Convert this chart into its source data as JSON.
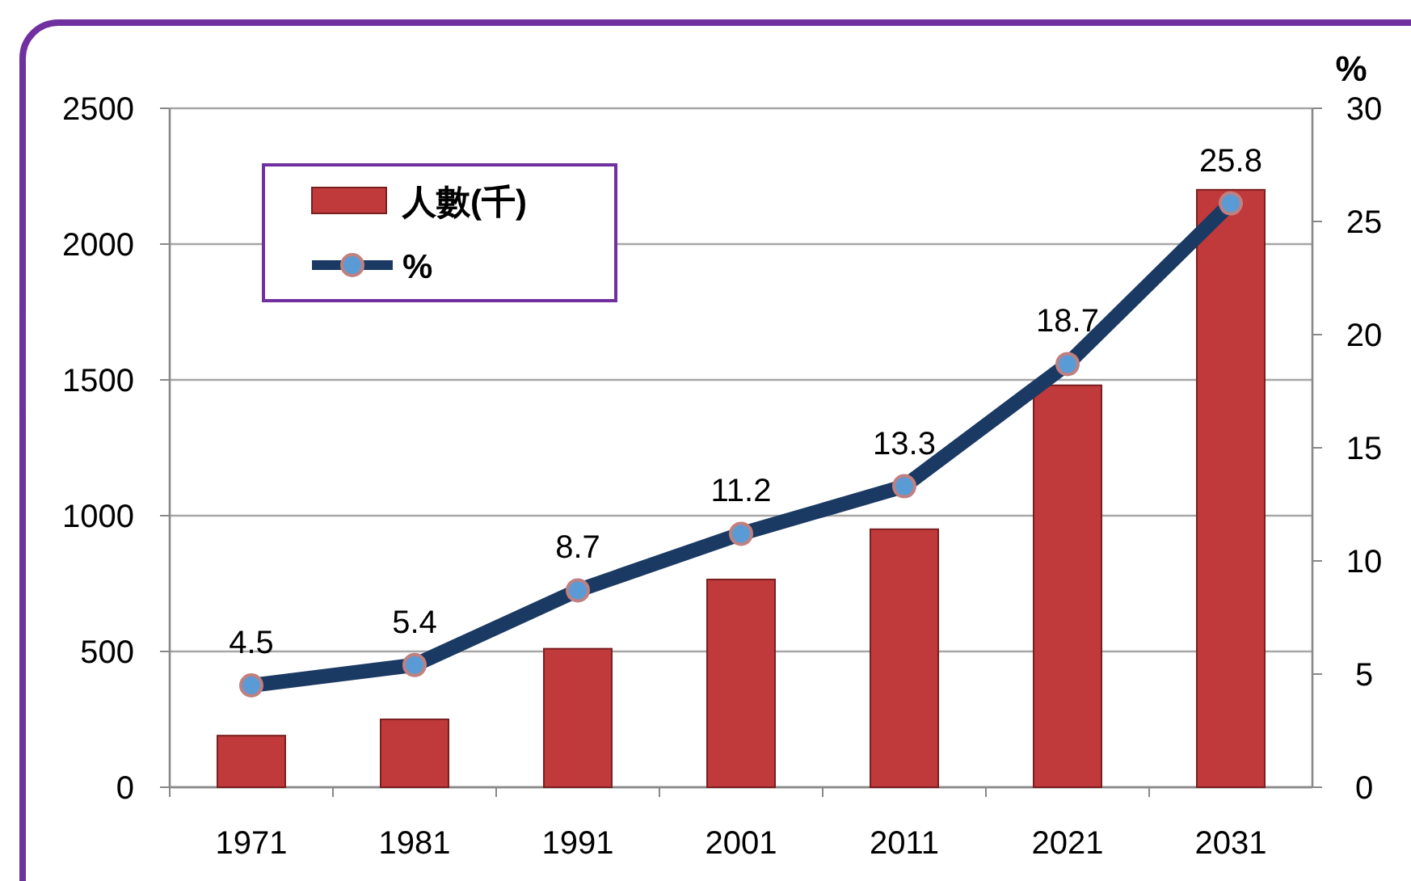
{
  "chart_data": {
    "type": "bar",
    "categories": [
      "1971",
      "1981",
      "1991",
      "2001",
      "2011",
      "2021",
      "2031"
    ],
    "y2label": "%",
    "series": [
      {
        "name": "人數(千)",
        "color": "#c0393b",
        "values": [
          190,
          250,
          510,
          765,
          950,
          1480,
          2200
        ]
      },
      {
        "name": "%",
        "type": "line",
        "axis": "y2",
        "color": "#1b3a63",
        "marker": "circle",
        "data_labels": true,
        "values": [
          4.5,
          5.4,
          8.7,
          11.2,
          13.3,
          18.7,
          25.8
        ]
      }
    ],
    "ylim": [
      0,
      2500
    ],
    "yticks": [
      0,
      500,
      1000,
      1500,
      2000,
      2500
    ],
    "y2lim": [
      0,
      30
    ],
    "y2ticks": [
      0,
      5,
      10,
      15,
      20,
      25,
      30
    ],
    "grid": "y",
    "legend": "top left"
  }
}
